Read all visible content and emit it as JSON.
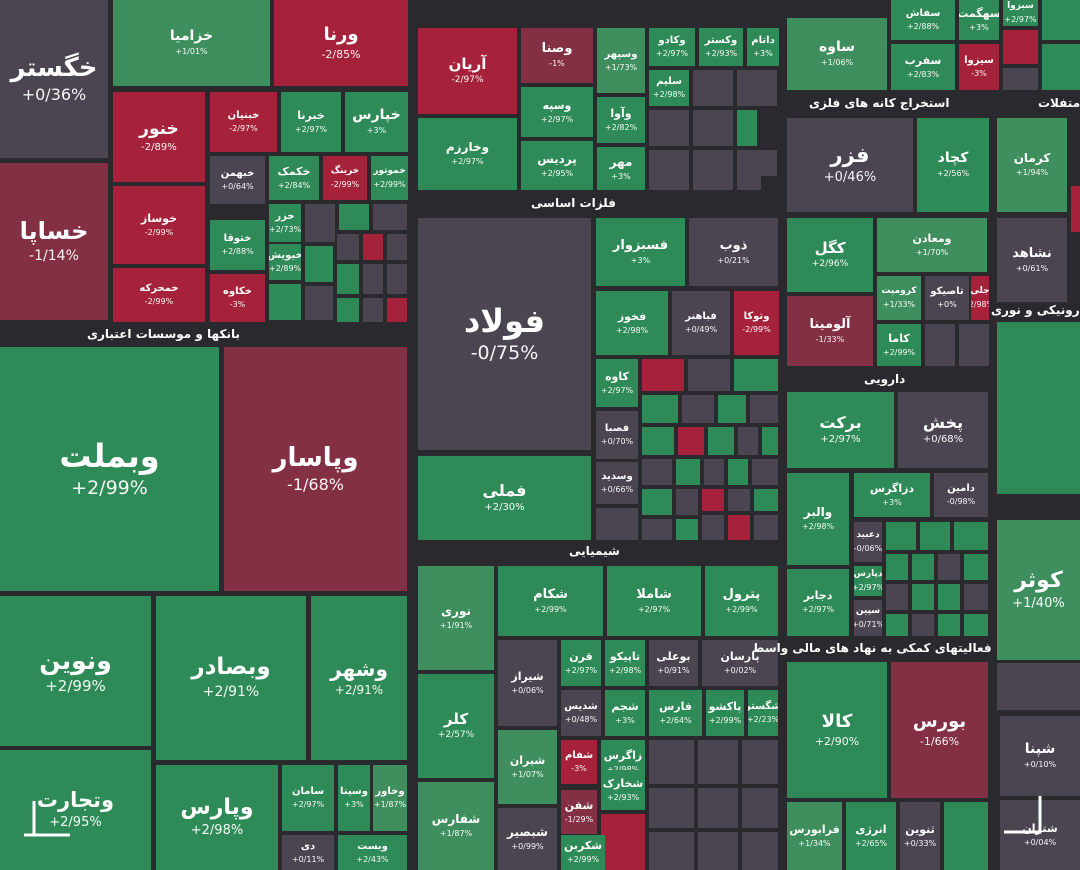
{
  "colors": {
    "up": "#2e8b57",
    "upLight": "#3f8f5e",
    "down": "#a6223a",
    "downLight": "#833044",
    "neutral": "#4a4550",
    "dark": "#2a2a2e"
  },
  "sectors": [
    "بانکها و موسسات اعتباری",
    "فلزات اساسی",
    "استخراج کانه های فلزی",
    "دارویی",
    "شیمیایی",
    "فعالیتهای کمکی به نهاد های مالی واسط",
    "متفلات",
    "رونیکی و نوری"
  ],
  "chart_data": {
    "type": "heatmap",
    "items": [
      {
        "name": "خگستر",
        "value": "+0/36%"
      },
      {
        "name": "خزامیا",
        "value": "+1/01%"
      },
      {
        "name": "ورنا",
        "value": "-2/85%"
      },
      {
        "name": "خساپا",
        "value": "-1/14%"
      },
      {
        "name": "خنور",
        "value": "-2/89%"
      },
      {
        "name": "خبنیان",
        "value": "-2/97%"
      },
      {
        "name": "خبرنا",
        "value": "+2/97%"
      },
      {
        "name": "خپارس",
        "value": "+3%"
      },
      {
        "name": "خوساز",
        "value": "-2/99%"
      },
      {
        "name": "خمحرکه",
        "value": "-2/99%"
      },
      {
        "name": "خبهمن",
        "value": "+0/64%"
      },
      {
        "name": "خکمک",
        "value": "+2/84%"
      },
      {
        "name": "خرینگ",
        "value": "-2/99%"
      },
      {
        "name": "خموتور",
        "value": "+2/99%"
      },
      {
        "name": "ختوقا",
        "value": "+2/88%"
      },
      {
        "name": "خزر",
        "value": "+2/73%"
      },
      {
        "name": "خیویش",
        "value": "+2/89%"
      },
      {
        "name": "خکاوه",
        "value": "-3%"
      },
      {
        "name": "وبملت",
        "value": "+2/99%"
      },
      {
        "name": "وپاسار",
        "value": "-1/68%"
      },
      {
        "name": "ونوین",
        "value": "+2/99%"
      },
      {
        "name": "وبصادر",
        "value": "+2/91%"
      },
      {
        "name": "وشهر",
        "value": "+2/91%"
      },
      {
        "name": "وتجارت",
        "value": "+2/95%"
      },
      {
        "name": "وپارس",
        "value": "+2/98%"
      },
      {
        "name": "سامان",
        "value": "+2/97%"
      },
      {
        "name": "وسینا",
        "value": "+3%"
      },
      {
        "name": "وخاور",
        "value": "+1/87%"
      },
      {
        "name": "دی",
        "value": "+0/11%"
      },
      {
        "name": "وبست",
        "value": "+2/43%"
      },
      {
        "name": "آریان",
        "value": "-2/97%"
      },
      {
        "name": "وصنا",
        "value": "-1%"
      },
      {
        "name": "وسپهر",
        "value": "+1/73%"
      },
      {
        "name": "وکادو",
        "value": "+2/97%"
      },
      {
        "name": "وکستر",
        "value": "+2/93%"
      },
      {
        "name": "داتام",
        "value": "+3%"
      },
      {
        "name": "وخارزم",
        "value": "+2/97%"
      },
      {
        "name": "وسپه",
        "value": "+2/97%"
      },
      {
        "name": "وآوا",
        "value": "+2/82%"
      },
      {
        "name": "سلیم",
        "value": "+2/98%"
      },
      {
        "name": "پردیس",
        "value": "+2/95%"
      },
      {
        "name": "مهر",
        "value": "+3%"
      },
      {
        "name": "فولاد",
        "value": "-0/75%"
      },
      {
        "name": "فسبزوار",
        "value": "+3%"
      },
      {
        "name": "ذوب",
        "value": "+0/21%"
      },
      {
        "name": "فخوز",
        "value": "+2/98%"
      },
      {
        "name": "فباهنر",
        "value": "+0/49%"
      },
      {
        "name": "وتوکا",
        "value": "-2/99%"
      },
      {
        "name": "کاوه",
        "value": "+2/97%"
      },
      {
        "name": "فصبا",
        "value": "+0/70%"
      },
      {
        "name": "وسدید",
        "value": "+0/66%"
      },
      {
        "name": "فملی",
        "value": "+2/30%"
      },
      {
        "name": "ساوه",
        "value": "+1/06%"
      },
      {
        "name": "سفاش",
        "value": "+2/88%"
      },
      {
        "name": "سهگمت",
        "value": "+3%"
      },
      {
        "name": "سفرب",
        "value": "+2/83%"
      },
      {
        "name": "سیزوا",
        "value": "-3%"
      },
      {
        "name": "سبزوا",
        "value": "+2/97%"
      },
      {
        "name": "فزر",
        "value": "+0/46%"
      },
      {
        "name": "کچاد",
        "value": "+2/56%"
      },
      {
        "name": "کگل",
        "value": "+2/96%"
      },
      {
        "name": "ومعادن",
        "value": "+1/70%"
      },
      {
        "name": "کرومیت",
        "value": "+1/33%"
      },
      {
        "name": "تاصیکو",
        "value": "+0%"
      },
      {
        "name": "جلی",
        "value": "-2/98%"
      },
      {
        "name": "آلومینا",
        "value": "-1/33%"
      },
      {
        "name": "کاما",
        "value": "+2/99%"
      },
      {
        "name": "کرمان",
        "value": "+1/94%"
      },
      {
        "name": "نشاهد",
        "value": "+0/61%"
      },
      {
        "name": "برکت",
        "value": "+2/97%"
      },
      {
        "name": "پخش",
        "value": "+0/68%"
      },
      {
        "name": "والبر",
        "value": "+2/98%"
      },
      {
        "name": "دزاگرس",
        "value": "+3%"
      },
      {
        "name": "دامین",
        "value": "-0/98%"
      },
      {
        "name": "دعبید",
        "value": "-0/06%"
      },
      {
        "name": "دپارس",
        "value": "+2/97%"
      },
      {
        "name": "سپین",
        "value": "+0/71%"
      },
      {
        "name": "دجابر",
        "value": "+2/97%"
      },
      {
        "name": "کوثر",
        "value": "+1/40%"
      },
      {
        "name": "نوری",
        "value": "+1/91%"
      },
      {
        "name": "شکام",
        "value": "+2/99%"
      },
      {
        "name": "شاملا",
        "value": "+2/97%"
      },
      {
        "name": "پترول",
        "value": "+2/99%"
      },
      {
        "name": "شیراز",
        "value": "+0/06%"
      },
      {
        "name": "قرن",
        "value": "+2/97%"
      },
      {
        "name": "تاپیکو",
        "value": "+2/98%"
      },
      {
        "name": "بوعلی",
        "value": "+0/91%"
      },
      {
        "name": "پارسان",
        "value": "+0/02%"
      },
      {
        "name": "شدیس",
        "value": "+0/48%"
      },
      {
        "name": "شجم",
        "value": "+3%"
      },
      {
        "name": "فارس",
        "value": "+2/64%"
      },
      {
        "name": "پاکشو",
        "value": "+2/99%"
      },
      {
        "name": "شگستر",
        "value": "+2/23%"
      },
      {
        "name": "کلر",
        "value": "+2/57%"
      },
      {
        "name": "شیران",
        "value": "+1/07%"
      },
      {
        "name": "شفام",
        "value": "-3%"
      },
      {
        "name": "زاگرس",
        "value": "+2/98%"
      },
      {
        "name": "شخارک",
        "value": "+2/93%"
      },
      {
        "name": "شفن",
        "value": "-1/29%"
      },
      {
        "name": "شفارس",
        "value": "+1/87%"
      },
      {
        "name": "شبصیر",
        "value": "+0/99%"
      },
      {
        "name": "شکربن",
        "value": "+2/99%"
      },
      {
        "name": "کالا",
        "value": "+2/90%"
      },
      {
        "name": "بورس",
        "value": "-1/66%"
      },
      {
        "name": "فرابورس",
        "value": "+1/34%"
      },
      {
        "name": "انرژی",
        "value": "+2/65%"
      },
      {
        "name": "ثنوین",
        "value": "+0/33%"
      },
      {
        "name": "شپنا",
        "value": "+0/10%"
      },
      {
        "name": "شتران",
        "value": "+0/04%"
      }
    ]
  }
}
